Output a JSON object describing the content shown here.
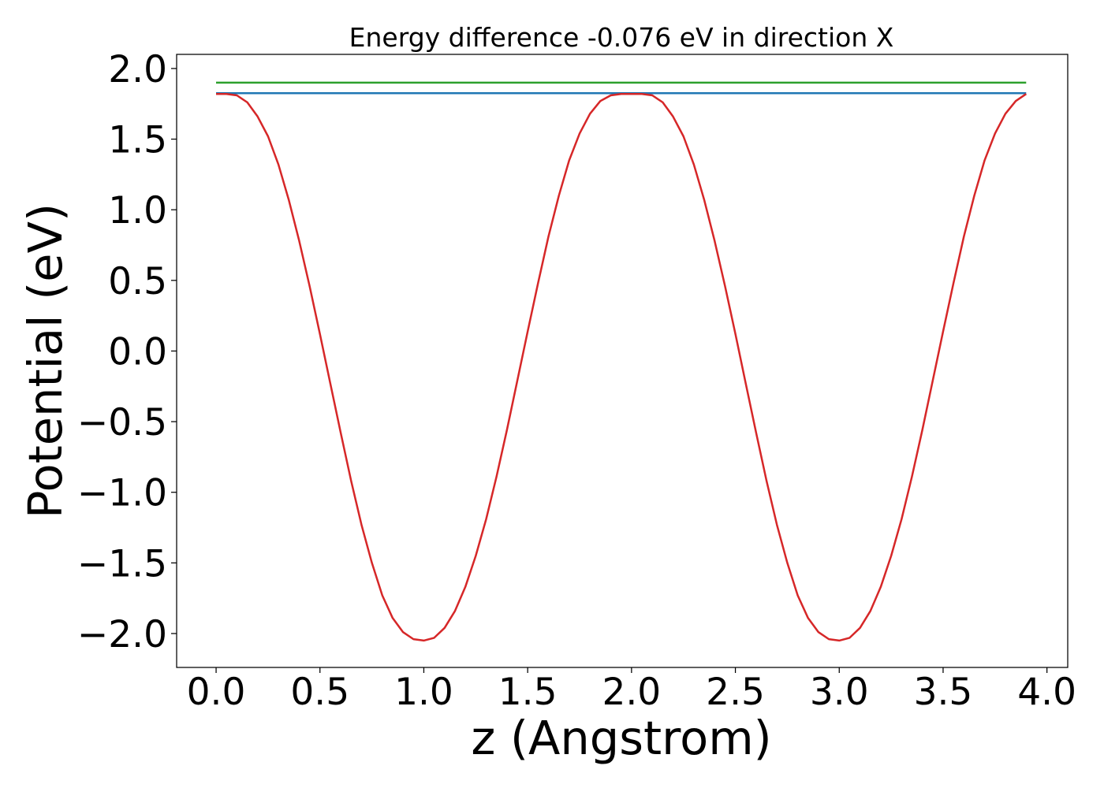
{
  "chart_data": {
    "type": "line",
    "title": "Energy difference -0.076 eV in direction X",
    "xlabel": "z (Angstrom)",
    "ylabel": "Potential (eV)",
    "xlim": [
      -0.19,
      4.1
    ],
    "ylim": [
      -2.24,
      2.1
    ],
    "xticks": [
      0.0,
      0.5,
      1.0,
      1.5,
      2.0,
      2.5,
      3.0,
      3.5,
      4.0
    ],
    "xtick_labels": [
      "0.0",
      "0.5",
      "1.0",
      "1.5",
      "2.0",
      "2.5",
      "3.0",
      "3.5",
      "4.0"
    ],
    "yticks": [
      -2.0,
      -1.5,
      -1.0,
      -0.5,
      0.0,
      0.5,
      1.0,
      1.5,
      2.0
    ],
    "ytick_labels": [
      "−2.0",
      "−1.5",
      "−1.0",
      "−0.5",
      "0.0",
      "0.5",
      "1.0",
      "1.5",
      "2.0"
    ],
    "grid": false,
    "legend": "none",
    "series": [
      {
        "color": "#2ca02c",
        "x": [
          0.0,
          3.9
        ],
        "y": [
          1.9,
          1.9
        ]
      },
      {
        "color": "#1f77b4",
        "x": [
          0.0,
          3.9
        ],
        "y": [
          1.825,
          1.825
        ]
      },
      {
        "color": "#d62728",
        "x": [
          0.0,
          0.05,
          0.1,
          0.15,
          0.2,
          0.25,
          0.3,
          0.35,
          0.4,
          0.45,
          0.5,
          0.55,
          0.6,
          0.65,
          0.7,
          0.75,
          0.8,
          0.85,
          0.9,
          0.95,
          1.0,
          1.05,
          1.1,
          1.15,
          1.2,
          1.25,
          1.3,
          1.35,
          1.4,
          1.45,
          1.5,
          1.55,
          1.6,
          1.65,
          1.7,
          1.75,
          1.8,
          1.85,
          1.9,
          1.95,
          2.0,
          2.05,
          2.1,
          2.15,
          2.2,
          2.25,
          2.3,
          2.35,
          2.4,
          2.45,
          2.5,
          2.55,
          2.6,
          2.65,
          2.7,
          2.75,
          2.8,
          2.85,
          2.9,
          2.95,
          3.0,
          3.05,
          3.1,
          3.15,
          3.2,
          3.25,
          3.3,
          3.35,
          3.4,
          3.45,
          3.5,
          3.55,
          3.6,
          3.65,
          3.7,
          3.75,
          3.8,
          3.85,
          3.9
        ],
        "y": [
          1.82,
          1.82,
          1.81,
          1.76,
          1.66,
          1.52,
          1.32,
          1.07,
          0.78,
          0.46,
          0.12,
          -0.23,
          -0.58,
          -0.92,
          -1.23,
          -1.5,
          -1.73,
          -1.89,
          -1.99,
          -2.04,
          -2.05,
          -2.03,
          -1.96,
          -1.84,
          -1.67,
          -1.45,
          -1.19,
          -0.89,
          -0.56,
          -0.21,
          0.14,
          0.48,
          0.81,
          1.1,
          1.35,
          1.54,
          1.68,
          1.77,
          1.81,
          1.82,
          1.82,
          1.82,
          1.81,
          1.76,
          1.66,
          1.52,
          1.32,
          1.07,
          0.78,
          0.46,
          0.12,
          -0.23,
          -0.58,
          -0.92,
          -1.23,
          -1.5,
          -1.73,
          -1.89,
          -1.99,
          -2.04,
          -2.05,
          -2.03,
          -1.96,
          -1.84,
          -1.67,
          -1.45,
          -1.19,
          -0.89,
          -0.56,
          -0.21,
          0.14,
          0.48,
          0.81,
          1.1,
          1.35,
          1.54,
          1.68,
          1.77,
          1.82
        ]
      }
    ]
  }
}
